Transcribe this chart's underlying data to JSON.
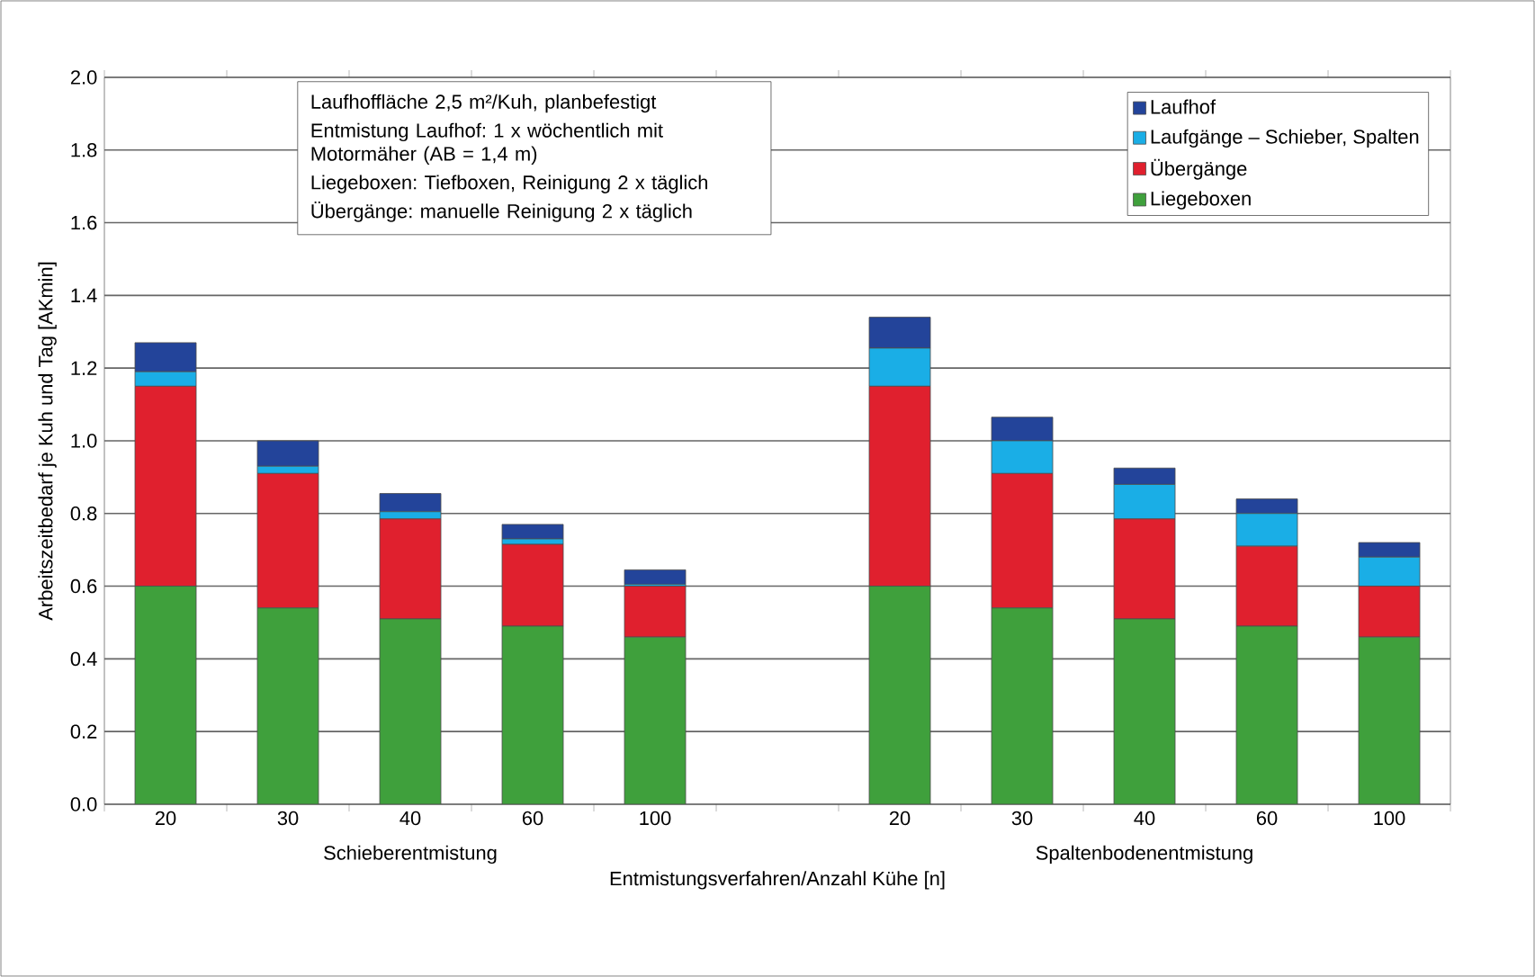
{
  "chart_data": {
    "type": "bar",
    "stacked": true,
    "xlabel": "Entmistungsverfahren/Anzahl Kühe [n]",
    "ylabel": "Arbeitszeitbedarf je Kuh und Tag [AKmin]",
    "categories": [
      "20",
      "30",
      "40",
      "60",
      "100",
      null,
      "20",
      "30",
      "40",
      "60",
      "100"
    ],
    "series": [
      {
        "name": "Liegeboxen",
        "color": "#3fa03c",
        "values": [
          0.6,
          0.54,
          0.51,
          0.49,
          0.46,
          null,
          0.6,
          0.54,
          0.51,
          0.49,
          0.46
        ]
      },
      {
        "name": "Übergänge",
        "color": "#e0202e",
        "values": [
          0.55,
          0.37,
          0.275,
          0.225,
          0.14,
          null,
          0.55,
          0.37,
          0.275,
          0.22,
          0.14
        ]
      },
      {
        "name": "Laufgänge – Schieber, Spalten",
        "color": "#1aaee6",
        "values": [
          0.04,
          0.02,
          0.02,
          0.015,
          0.005,
          null,
          0.105,
          0.09,
          0.095,
          0.09,
          0.08
        ]
      },
      {
        "name": "Laufhof",
        "color": "#23449a",
        "values": [
          0.08,
          0.07,
          0.05,
          0.04,
          0.04,
          null,
          0.085,
          0.065,
          0.045,
          0.04,
          0.04
        ]
      }
    ],
    "ylim": [
      0,
      2.0
    ],
    "yticks": [
      {
        "value": 0,
        "label": "0.0"
      },
      {
        "value": 0.2,
        "label": "0.2"
      },
      {
        "value": 0.4,
        "label": "0.4"
      },
      {
        "value": 0.6,
        "label": "0.6"
      },
      {
        "value": 0.8,
        "label": "0.8"
      },
      {
        "value": 1.0,
        "label": "1.0"
      },
      {
        "value": 1.2,
        "label": "1.2"
      },
      {
        "value": 1.4,
        "label": "1.4"
      },
      {
        "value": 1.6,
        "label": "1.6"
      },
      {
        "value": 1.8,
        "label": "1.8"
      },
      {
        "value": 2.0,
        "label": "2.0"
      }
    ],
    "grid": "y",
    "legend": "top right",
    "annotations": [
      "Laufhoffläche 2,5 m²/Kuh, planbefestigt",
      "Entmistung Laufhof: 1 x wöchentlich mit Motormäher (AB = 1,4 m)",
      "Liegeboxen: Tiefboxen, Reinigung 2 x täglich",
      "Übergänge: manuelle Reinigung 2 x täglich",
      "Schieberentmistung",
      "Spaltenbodenentmistung"
    ]
  }
}
